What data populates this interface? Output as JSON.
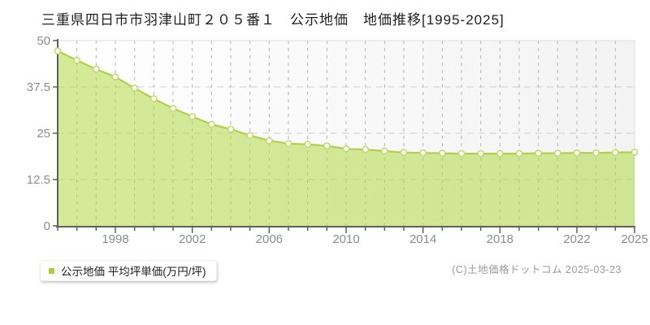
{
  "header": {
    "title": "三重県四日市市羽津山町２０５番１　公示地価　地価推移[1995-2025]"
  },
  "legend": {
    "label": "公示地価 平均坪単価(万円/坪)",
    "marker_color": "#a9ce3a"
  },
  "footer": {
    "copyright": "(C)土地価格ドットコム 2025-03-23"
  },
  "chart_data": {
    "type": "area",
    "title": "三重県四日市市羽津山町２０５番１ 公示地価 地価推移[1995-2025]",
    "xlabel": "",
    "ylabel": "",
    "unit": "万円/坪",
    "x": [
      1995,
      1996,
      1997,
      1998,
      1999,
      2000,
      2001,
      2002,
      2003,
      2004,
      2005,
      2006,
      2007,
      2008,
      2009,
      2010,
      2011,
      2012,
      2013,
      2014,
      2015,
      2016,
      2017,
      2018,
      2019,
      2020,
      2021,
      2022,
      2023,
      2024,
      2025
    ],
    "series": [
      {
        "name": "公示地価 平均坪単価",
        "values": [
          47.2,
          44.7,
          42.3,
          40.2,
          37.2,
          34.3,
          31.7,
          29.5,
          27.4,
          26.1,
          24.4,
          23.0,
          22.2,
          22.0,
          21.6,
          20.8,
          20.6,
          20.2,
          19.8,
          19.7,
          19.6,
          19.5,
          19.5,
          19.5,
          19.5,
          19.6,
          19.6,
          19.7,
          19.7,
          19.8,
          19.9
        ]
      }
    ],
    "ylim": [
      0,
      50
    ],
    "y_ticks": [
      0,
      12.5,
      25,
      37.5,
      50
    ],
    "y_tick_labels": [
      "0",
      "12.5",
      "25",
      "37.5",
      "50"
    ],
    "x_labeled_ticks": [
      1998,
      2002,
      2006,
      2010,
      2014,
      2018,
      2022,
      2025
    ],
    "grid": true,
    "legend_position": "bottom-left",
    "colors": {
      "line": "#afd14a",
      "fill": "#b2d846",
      "fill_opacity": 0.55,
      "marker_fill": "#fdfff5",
      "marker_stroke": "#c2da74",
      "axis": "#5f5f5f",
      "vgrid": "#b3b3b3",
      "hgrid": "#cfcfcf",
      "border": "#dddddd"
    }
  }
}
